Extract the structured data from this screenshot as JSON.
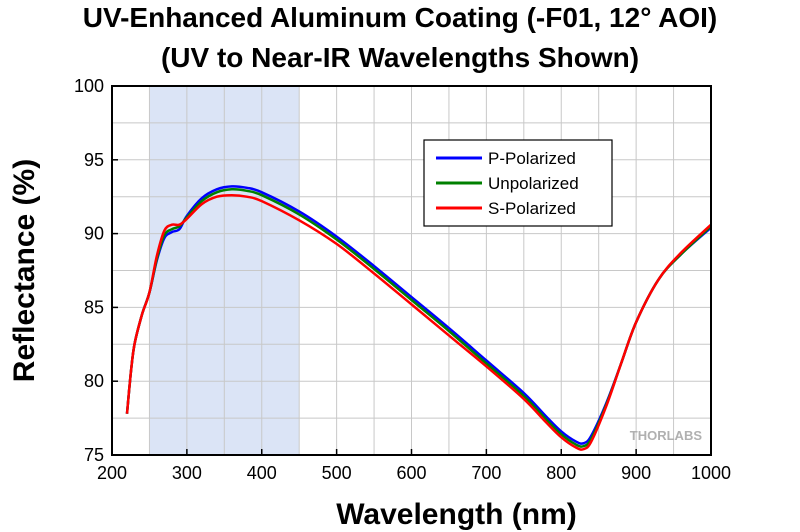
{
  "chart_data": {
    "type": "line",
    "title": "UV-Enhanced Aluminum Coating (-F01, 12° AOI)",
    "subtitle": "(UV to Near-IR Wavelengths Shown)",
    "xlabel": "Wavelength (nm)",
    "ylabel": "Reflectance (%)",
    "xlim": [
      200,
      1000
    ],
    "ylim": [
      75,
      100
    ],
    "xticks": [
      200,
      300,
      400,
      500,
      600,
      700,
      800,
      900,
      1000
    ],
    "yticks": [
      75,
      80,
      85,
      90,
      95,
      100
    ],
    "grid": true,
    "legend_position": "upper-right",
    "shaded_region": {
      "x": [
        250,
        450
      ],
      "color": "#dbe4f6"
    },
    "watermark": "THORLABS",
    "series": [
      {
        "name": "P-Polarized",
        "color": "#0000ff",
        "x": [
          220,
          225,
          230,
          240,
          250,
          260,
          270,
          280,
          290,
          300,
          320,
          340,
          360,
          380,
          400,
          450,
          500,
          550,
          600,
          650,
          700,
          750,
          780,
          800,
          820,
          830,
          840,
          860,
          880,
          900,
          930,
          960,
          1000
        ],
        "y": [
          77.8,
          80.5,
          82.5,
          84.5,
          86,
          88.2,
          89.7,
          90.1,
          90.3,
          91.2,
          92.4,
          93,
          93.2,
          93.1,
          92.8,
          91.5,
          89.8,
          87.8,
          85.7,
          83.6,
          81.4,
          79.2,
          77.6,
          76.6,
          75.9,
          75.8,
          76.3,
          78.5,
          81.2,
          84,
          86.9,
          88.6,
          90.4
        ]
      },
      {
        "name": "Unpolarized",
        "color": "#008000",
        "x": [
          220,
          225,
          230,
          240,
          250,
          260,
          270,
          280,
          290,
          300,
          320,
          340,
          360,
          380,
          400,
          450,
          500,
          550,
          600,
          650,
          700,
          750,
          780,
          800,
          820,
          830,
          840,
          860,
          880,
          900,
          930,
          960,
          1000
        ],
        "y": [
          77.8,
          80.5,
          82.5,
          84.5,
          86,
          88.3,
          89.9,
          90.3,
          90.5,
          91.1,
          92.2,
          92.8,
          93,
          92.9,
          92.6,
          91.3,
          89.6,
          87.6,
          85.5,
          83.4,
          81.2,
          79,
          77.4,
          76.4,
          75.7,
          75.6,
          76.1,
          78.4,
          81.2,
          84,
          86.9,
          88.6,
          90.5
        ]
      },
      {
        "name": "S-Polarized",
        "color": "#ff0000",
        "x": [
          220,
          225,
          230,
          240,
          250,
          260,
          270,
          280,
          290,
          300,
          320,
          340,
          360,
          380,
          400,
          450,
          500,
          550,
          600,
          650,
          700,
          750,
          780,
          800,
          820,
          830,
          840,
          860,
          880,
          900,
          930,
          960,
          1000
        ],
        "y": [
          77.8,
          80.5,
          82.5,
          84.5,
          86,
          88.5,
          90.2,
          90.6,
          90.6,
          91,
          92,
          92.5,
          92.6,
          92.5,
          92.2,
          90.9,
          89.3,
          87.3,
          85.2,
          83.1,
          81,
          78.8,
          77.2,
          76.2,
          75.5,
          75.4,
          75.9,
          78.3,
          81.2,
          84,
          86.9,
          88.7,
          90.6
        ]
      }
    ]
  }
}
